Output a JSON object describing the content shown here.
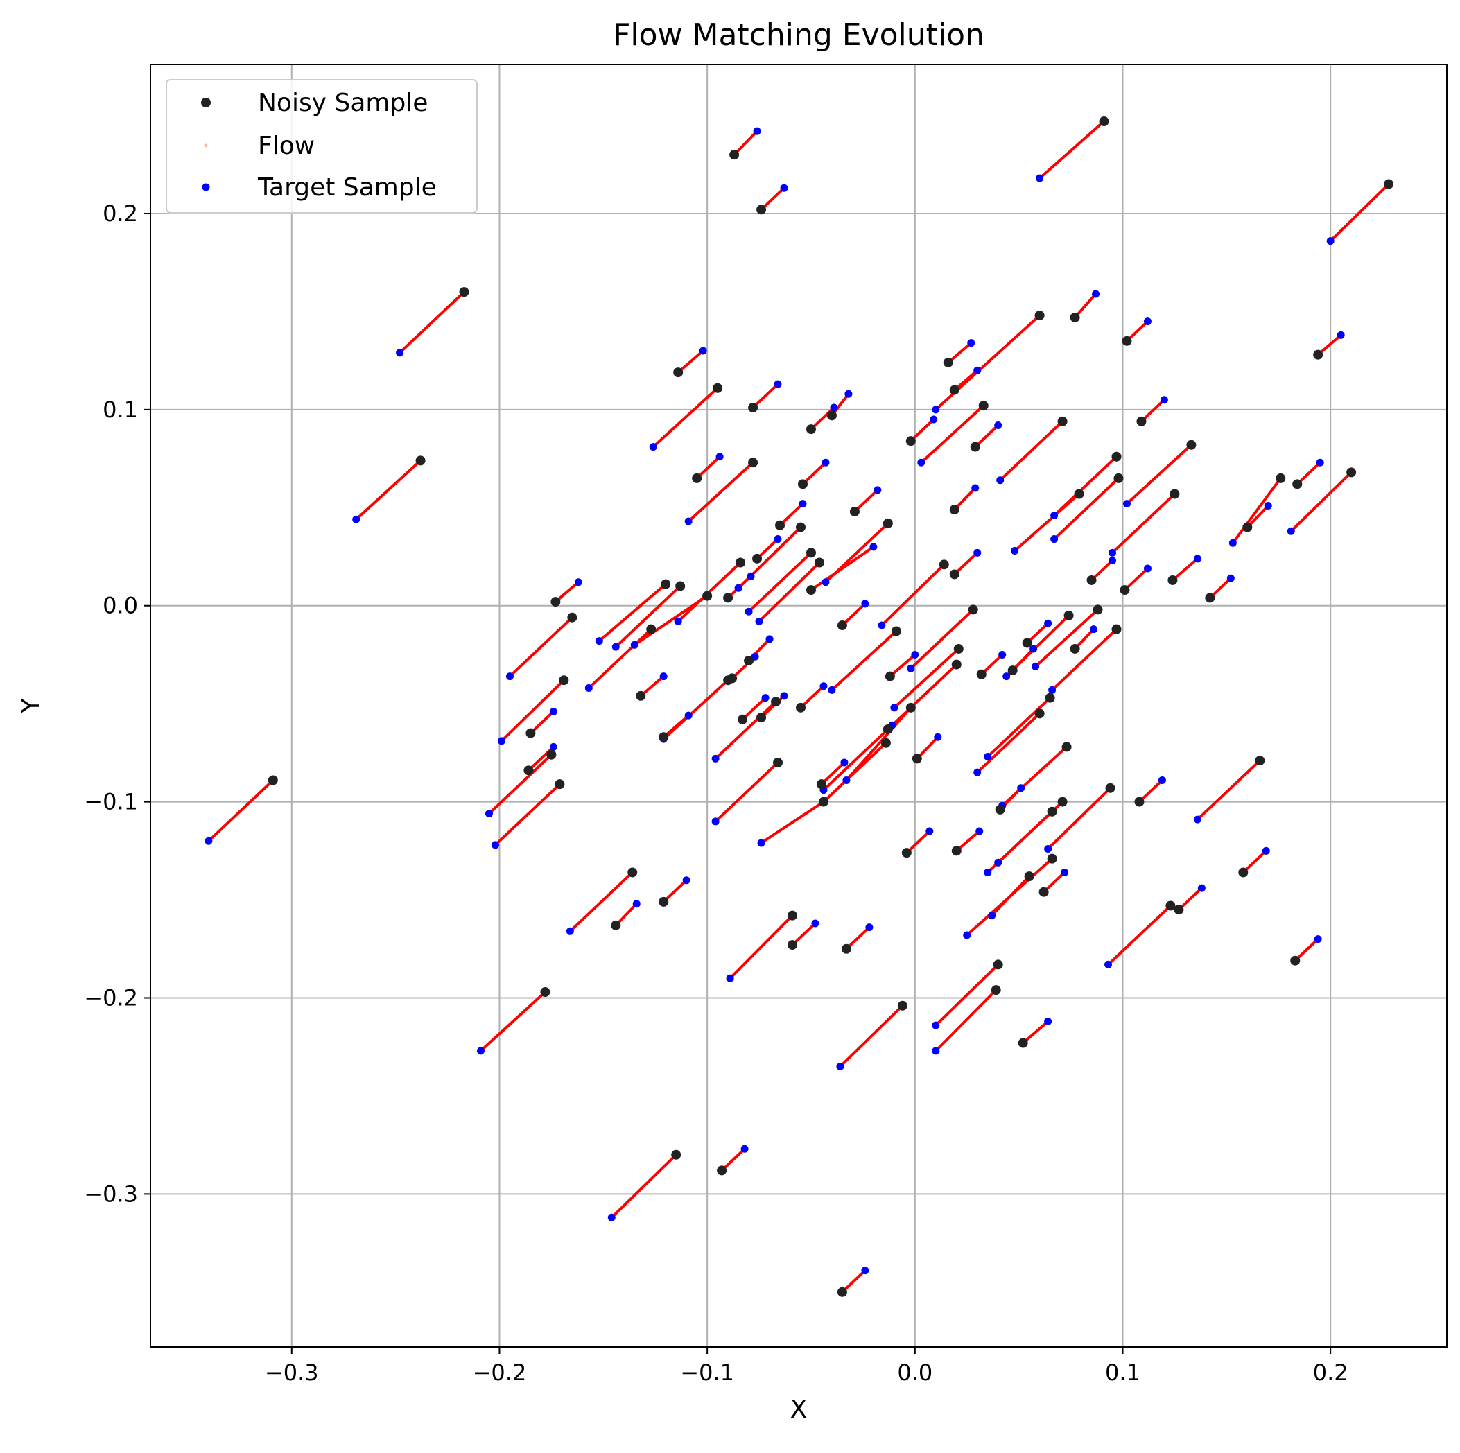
{
  "chart_data": {
    "type": "scatter",
    "title": "Flow Matching Evolution",
    "xlabel": "X",
    "ylabel": "Y",
    "xlim": [
      -0.368,
      0.256
    ],
    "ylim": [
      -0.378,
      0.276
    ],
    "xticks": [
      -0.3,
      -0.2,
      -0.1,
      0.0,
      0.1,
      0.2
    ],
    "yticks": [
      -0.3,
      -0.2,
      -0.1,
      0.0,
      0.1,
      0.2
    ],
    "xtick_labels": [
      "−0.3",
      "−0.2",
      "−0.1",
      "0.0",
      "0.1",
      "0.2"
    ],
    "ytick_labels": [
      "−0.3",
      "−0.2",
      "−0.1",
      "0.0",
      "0.1",
      "0.2"
    ],
    "grid": true,
    "legend_position": "top-left",
    "colors": {
      "noisy": "#222222",
      "flow": "#ff0000",
      "flow_legend": "#f7b7a3",
      "target": "#0000ff",
      "grid": "#b0b0b0"
    },
    "series": [
      {
        "name": "Noisy Sample"
      },
      {
        "name": "Flow"
      },
      {
        "name": "Target Sample"
      }
    ],
    "pairs": [
      [
        0.091,
        0.247,
        0.06,
        0.218
      ],
      [
        0.228,
        0.215,
        0.2,
        0.186
      ],
      [
        -0.087,
        0.23,
        -0.076,
        0.242
      ],
      [
        -0.074,
        0.202,
        -0.063,
        0.213
      ],
      [
        -0.217,
        0.16,
        -0.248,
        0.129
      ],
      [
        -0.238,
        0.074,
        -0.269,
        0.044
      ],
      [
        -0.309,
        -0.089,
        -0.34,
        -0.12
      ],
      [
        0.06,
        0.148,
        0.01,
        0.1
      ],
      [
        0.077,
        0.147,
        0.087,
        0.159
      ],
      [
        0.102,
        0.135,
        0.112,
        0.145
      ],
      [
        0.194,
        0.128,
        0.205,
        0.138
      ],
      [
        -0.114,
        0.119,
        -0.102,
        0.13
      ],
      [
        -0.095,
        0.111,
        -0.126,
        0.081
      ],
      [
        -0.078,
        0.101,
        -0.066,
        0.113
      ],
      [
        0.016,
        0.124,
        0.027,
        0.134
      ],
      [
        0.019,
        0.11,
        0.03,
        0.12
      ],
      [
        0.033,
        0.102,
        0.003,
        0.073
      ],
      [
        -0.05,
        0.09,
        -0.039,
        0.101
      ],
      [
        -0.04,
        0.097,
        -0.032,
        0.108
      ],
      [
        -0.002,
        0.084,
        0.009,
        0.095
      ],
      [
        0.029,
        0.081,
        0.04,
        0.092
      ],
      [
        0.071,
        0.094,
        0.041,
        0.064
      ],
      [
        0.109,
        0.094,
        0.12,
        0.105
      ],
      [
        0.133,
        0.082,
        0.102,
        0.052
      ],
      [
        0.097,
        0.076,
        0.067,
        0.046
      ],
      [
        0.098,
        0.065,
        0.067,
        0.034
      ],
      [
        -0.105,
        0.065,
        -0.094,
        0.076
      ],
      [
        -0.078,
        0.073,
        -0.109,
        0.043
      ],
      [
        -0.054,
        0.062,
        -0.043,
        0.073
      ],
      [
        -0.029,
        0.048,
        -0.018,
        0.059
      ],
      [
        0.019,
        0.049,
        0.029,
        0.06
      ],
      [
        -0.013,
        0.042,
        -0.043,
        0.012
      ],
      [
        0.079,
        0.057,
        0.048,
        0.028
      ],
      [
        0.125,
        0.057,
        0.095,
        0.027
      ],
      [
        0.176,
        0.065,
        0.153,
        0.032
      ],
      [
        0.184,
        0.062,
        0.195,
        0.073
      ],
      [
        0.21,
        0.068,
        0.181,
        0.038
      ],
      [
        0.16,
        0.04,
        0.17,
        0.051
      ],
      [
        0.014,
        0.021,
        -0.016,
        -0.01
      ],
      [
        0.019,
        0.016,
        0.03,
        0.027
      ],
      [
        -0.055,
        0.04,
        -0.085,
        0.009
      ],
      [
        -0.065,
        0.041,
        -0.054,
        0.052
      ],
      [
        -0.05,
        0.027,
        -0.08,
        -0.003
      ],
      [
        -0.046,
        0.022,
        -0.075,
        -0.008
      ],
      [
        -0.076,
        0.024,
        -0.066,
        0.034
      ],
      [
        -0.084,
        0.022,
        -0.114,
        -0.008
      ],
      [
        -0.09,
        0.004,
        -0.079,
        0.015
      ],
      [
        -0.1,
        0.005,
        -0.135,
        -0.02
      ],
      [
        -0.12,
        0.011,
        -0.152,
        -0.018
      ],
      [
        -0.113,
        0.01,
        -0.144,
        -0.021
      ],
      [
        -0.173,
        0.002,
        -0.162,
        0.012
      ],
      [
        -0.165,
        -0.006,
        -0.195,
        -0.036
      ],
      [
        0.101,
        0.008,
        0.112,
        0.019
      ],
      [
        0.124,
        0.013,
        0.136,
        0.024
      ],
      [
        0.142,
        0.004,
        0.152,
        0.014
      ],
      [
        0.085,
        0.013,
        0.095,
        0.023
      ],
      [
        0.088,
        -0.002,
        0.058,
        -0.031
      ],
      [
        0.028,
        -0.002,
        -0.002,
        -0.032
      ],
      [
        -0.05,
        0.008,
        -0.02,
        0.03
      ],
      [
        -0.035,
        -0.01,
        -0.024,
        0.001
      ],
      [
        -0.009,
        -0.013,
        -0.04,
        -0.043
      ],
      [
        -0.055,
        -0.052,
        -0.044,
        -0.041
      ],
      [
        -0.127,
        -0.012,
        -0.157,
        -0.042
      ],
      [
        -0.132,
        -0.046,
        -0.121,
        -0.036
      ],
      [
        -0.169,
        -0.038,
        -0.199,
        -0.069
      ],
      [
        -0.121,
        -0.067,
        -0.109,
        -0.056
      ],
      [
        -0.09,
        -0.038,
        -0.121,
        -0.068
      ],
      [
        -0.088,
        -0.037,
        -0.077,
        -0.026
      ],
      [
        -0.08,
        -0.028,
        -0.07,
        -0.017
      ],
      [
        -0.083,
        -0.058,
        -0.072,
        -0.047
      ],
      [
        -0.074,
        -0.057,
        -0.063,
        -0.046
      ],
      [
        -0.066,
        -0.08,
        -0.096,
        -0.11
      ],
      [
        -0.067,
        -0.049,
        -0.096,
        -0.078
      ],
      [
        -0.012,
        -0.036,
        0.0,
        -0.025
      ],
      [
        0.021,
        -0.022,
        -0.01,
        -0.052
      ],
      [
        0.02,
        -0.03,
        -0.011,
        -0.061
      ],
      [
        0.032,
        -0.035,
        0.042,
        -0.025
      ],
      [
        0.047,
        -0.033,
        0.057,
        -0.022
      ],
      [
        0.054,
        -0.019,
        0.064,
        -0.009
      ],
      [
        0.074,
        -0.005,
        0.044,
        -0.036
      ],
      [
        0.077,
        -0.022,
        0.086,
        -0.012
      ],
      [
        0.097,
        -0.012,
        0.066,
        -0.043
      ],
      [
        -0.185,
        -0.065,
        -0.174,
        -0.054
      ],
      [
        -0.186,
        -0.084,
        -0.174,
        -0.072
      ],
      [
        -0.175,
        -0.076,
        -0.205,
        -0.106
      ],
      [
        -0.171,
        -0.091,
        -0.202,
        -0.122
      ],
      [
        -0.014,
        -0.07,
        -0.044,
        -0.1
      ],
      [
        -0.013,
        -0.063,
        -0.044,
        -0.094
      ],
      [
        -0.045,
        -0.091,
        -0.034,
        -0.08
      ],
      [
        -0.002,
        -0.052,
        -0.033,
        -0.089
      ],
      [
        0.001,
        -0.078,
        0.011,
        -0.067
      ],
      [
        0.06,
        -0.055,
        0.03,
        -0.085
      ],
      [
        0.065,
        -0.047,
        0.035,
        -0.077
      ],
      [
        0.073,
        -0.072,
        0.042,
        -0.102
      ],
      [
        0.041,
        -0.104,
        0.051,
        -0.093
      ],
      [
        0.066,
        -0.105,
        0.035,
        -0.136
      ],
      [
        0.071,
        -0.1,
        0.04,
        -0.131
      ],
      [
        0.094,
        -0.093,
        0.064,
        -0.124
      ],
      [
        0.108,
        -0.1,
        0.119,
        -0.089
      ],
      [
        0.166,
        -0.079,
        0.136,
        -0.109
      ],
      [
        -0.044,
        -0.1,
        -0.074,
        -0.121
      ],
      [
        -0.004,
        -0.126,
        0.007,
        -0.115
      ],
      [
        0.02,
        -0.125,
        0.031,
        -0.115
      ],
      [
        0.066,
        -0.129,
        0.025,
        -0.168
      ],
      [
        0.055,
        -0.138,
        0.037,
        -0.158
      ],
      [
        0.062,
        -0.146,
        0.072,
        -0.136
      ],
      [
        0.123,
        -0.153,
        0.093,
        -0.183
      ],
      [
        0.127,
        -0.155,
        0.138,
        -0.144
      ],
      [
        0.158,
        -0.136,
        0.169,
        -0.125
      ],
      [
        0.183,
        -0.181,
        0.194,
        -0.17
      ],
      [
        -0.136,
        -0.136,
        -0.166,
        -0.166
      ],
      [
        -0.144,
        -0.163,
        -0.134,
        -0.152
      ],
      [
        -0.121,
        -0.151,
        -0.11,
        -0.14
      ],
      [
        -0.059,
        -0.158,
        -0.089,
        -0.19
      ],
      [
        -0.059,
        -0.173,
        -0.048,
        -0.162
      ],
      [
        -0.033,
        -0.175,
        -0.022,
        -0.164
      ],
      [
        -0.178,
        -0.197,
        -0.209,
        -0.227
      ],
      [
        -0.006,
        -0.204,
        -0.036,
        -0.235
      ],
      [
        0.04,
        -0.183,
        0.01,
        -0.214
      ],
      [
        0.039,
        -0.196,
        0.01,
        -0.227
      ],
      [
        0.052,
        -0.223,
        0.064,
        -0.212
      ],
      [
        -0.115,
        -0.28,
        -0.146,
        -0.312
      ],
      [
        -0.093,
        -0.288,
        -0.082,
        -0.277
      ],
      [
        -0.035,
        -0.35,
        -0.024,
        -0.339
      ]
    ]
  }
}
